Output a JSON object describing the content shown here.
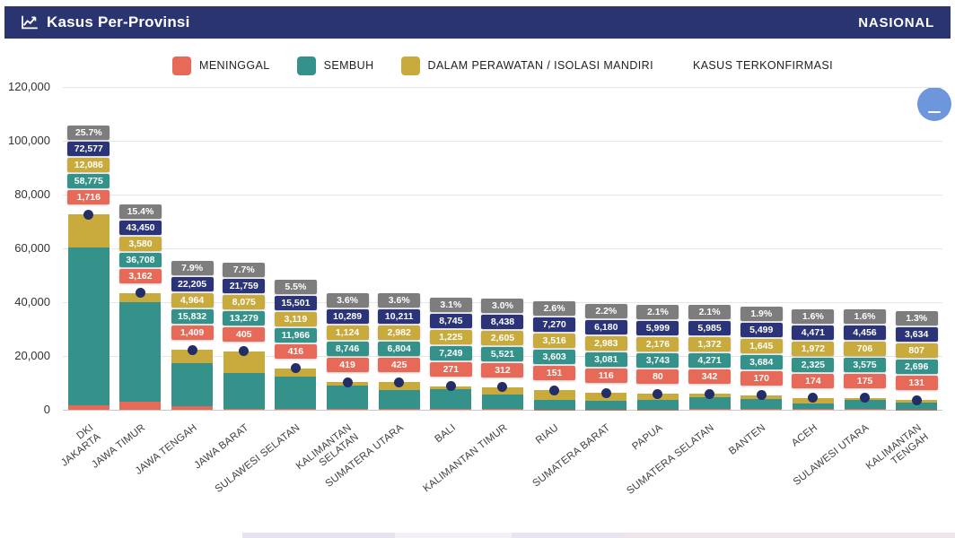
{
  "header": {
    "title": "Kasus Per-Provinsi",
    "icon": "line-chart-icon",
    "right_label": "NASIONAL"
  },
  "collapse_button": {
    "glyph": "minus"
  },
  "legend": [
    {
      "label": "MENINGGAL",
      "color": "#e66a57"
    },
    {
      "label": "SEMBUH",
      "color": "#35928b"
    },
    {
      "label": "DALAM PERAWATAN / ISOLASI MANDIRI",
      "color": "#c9aa3d"
    },
    {
      "label": "KASUS TERKONFIRMASI",
      "color": null
    }
  ],
  "colors": {
    "header_bg": "#293471",
    "meninggal": "#e66a57",
    "sembuh": "#35928b",
    "perawatan": "#c9aa3d",
    "terkonfirmasi_box": "#2b3478",
    "percent_box": "#7d7d7d",
    "total_dot": "#232d66",
    "collapse_button": "#6e96dc"
  },
  "chart_data": {
    "type": "bar",
    "stacked": true,
    "title": "Kasus Per-Provinsi",
    "xlabel": "",
    "ylabel": "",
    "ylim": [
      0,
      120000
    ],
    "ytick_interval": 20000,
    "yticks": [
      "0",
      "20,000",
      "40,000",
      "60,000",
      "80,000",
      "100,000",
      "120,000"
    ],
    "grid": true,
    "legend_position": "top",
    "categories": [
      "DKI JAKARTA",
      "JAWA TIMUR",
      "JAWA TENGAH",
      "JAWA BARAT",
      "SULAWESI SELATAN",
      "KALIMANTAN\nSELATAN",
      "SUMATERA UTARA",
      "BALI",
      "KALIMANTAN TIMUR",
      "RIAU",
      "SUMATERA BARAT",
      "PAPUA",
      "SUMATERA SELATAN",
      "BANTEN",
      "ACEH",
      "SULAWESI UTARA",
      "KALIMANTAN\nTENGAH"
    ],
    "series": [
      {
        "name": "MENINGGAL",
        "color": "#e66a57",
        "values": [
          1716,
          3162,
          1409,
          405,
          416,
          419,
          425,
          271,
          312,
          151,
          116,
          80,
          342,
          170,
          174,
          175,
          131
        ]
      },
      {
        "name": "SEMBUH",
        "color": "#35928b",
        "values": [
          58775,
          36708,
          15832,
          13279,
          11966,
          8746,
          6804,
          7249,
          5521,
          3603,
          3081,
          3743,
          4271,
          3684,
          2325,
          3575,
          2696
        ]
      },
      {
        "name": "DALAM PERAWATAN / ISOLASI MANDIRI",
        "color": "#c9aa3d",
        "values": [
          12086,
          3580,
          4964,
          8075,
          3119,
          1124,
          2982,
          1225,
          2605,
          3516,
          2983,
          2176,
          1372,
          1645,
          1972,
          706,
          807
        ]
      }
    ],
    "totals": [
      72577,
      43450,
      22205,
      21759,
      15501,
      10289,
      10211,
      8745,
      8438,
      7270,
      6180,
      5999,
      5985,
      5499,
      4471,
      4456,
      3634
    ],
    "percentages": [
      "25.7%",
      "15.4%",
      "7.9%",
      "7.7%",
      "5.5%",
      "3.6%",
      "3.6%",
      "3.1%",
      "3.0%",
      "2.6%",
      "2.2%",
      "2.1%",
      "2.1%",
      "1.9%",
      "1.6%",
      "1.6%",
      "1.3%"
    ]
  }
}
